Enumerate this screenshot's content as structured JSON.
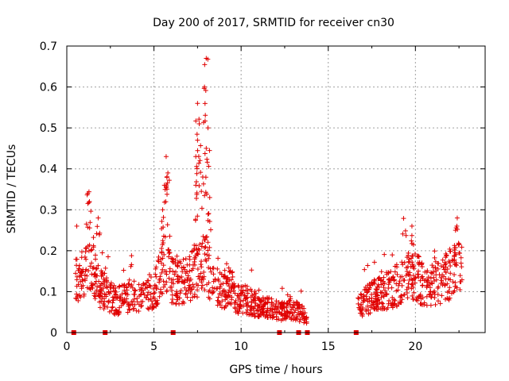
{
  "chart_data": {
    "type": "scatter",
    "title": "Day 200 of 2017, SRMTID for receiver cn30",
    "xlabel": "GPS time / hours",
    "ylabel": "SRMTID / TECUs",
    "xlim": [
      0,
      24
    ],
    "ylim": [
      0,
      0.7
    ],
    "xticks": [
      "0",
      "5",
      "10",
      "15",
      "20"
    ],
    "yticks": [
      "0",
      "0.1",
      "0.2",
      "0.3",
      "0.4",
      "0.5",
      "0.6",
      "0.7"
    ],
    "grid": true,
    "legend": "none",
    "series": [
      {
        "name": "SRMTID",
        "marker": "plus",
        "color": "#e00000",
        "description": "dense scatter; envelope of typical values (hour, value) below, with outlying spikes",
        "envelope": [
          [
            0.5,
            0.15
          ],
          [
            1.0,
            0.12
          ],
          [
            1.3,
            0.2
          ],
          [
            1.7,
            0.12
          ],
          [
            2.2,
            0.1
          ],
          [
            2.7,
            0.08
          ],
          [
            3.2,
            0.08
          ],
          [
            3.7,
            0.09
          ],
          [
            4.2,
            0.08
          ],
          [
            4.7,
            0.09
          ],
          [
            5.2,
            0.12
          ],
          [
            5.6,
            0.17
          ],
          [
            6.0,
            0.13
          ],
          [
            6.5,
            0.12
          ],
          [
            7.0,
            0.13
          ],
          [
            7.5,
            0.15
          ],
          [
            8.0,
            0.17
          ],
          [
            8.4,
            0.12
          ],
          [
            8.9,
            0.1
          ],
          [
            9.3,
            0.12
          ],
          [
            9.8,
            0.08
          ],
          [
            10.3,
            0.08
          ],
          [
            10.8,
            0.07
          ],
          [
            11.3,
            0.06
          ],
          [
            11.8,
            0.06
          ],
          [
            12.3,
            0.05
          ],
          [
            12.8,
            0.06
          ],
          [
            13.3,
            0.05
          ],
          [
            13.8,
            0.04
          ],
          [
            16.7,
            0.06
          ],
          [
            17.2,
            0.08
          ],
          [
            17.7,
            0.09
          ],
          [
            18.2,
            0.1
          ],
          [
            18.7,
            0.11
          ],
          [
            19.2,
            0.12
          ],
          [
            19.7,
            0.14
          ],
          [
            20.2,
            0.13
          ],
          [
            20.7,
            0.11
          ],
          [
            21.2,
            0.12
          ],
          [
            21.7,
            0.13
          ],
          [
            22.2,
            0.15
          ],
          [
            22.7,
            0.15
          ]
        ],
        "spikes": [
          [
            1.2,
            0.34
          ],
          [
            1.3,
            0.32
          ],
          [
            1.8,
            0.28
          ],
          [
            5.7,
            0.43
          ],
          [
            5.6,
            0.36
          ],
          [
            5.5,
            0.3
          ],
          [
            5.8,
            0.39
          ],
          [
            7.4,
            0.43
          ],
          [
            7.5,
            0.47
          ],
          [
            7.5,
            0.56
          ],
          [
            7.6,
            0.51
          ],
          [
            7.4,
            0.36
          ],
          [
            7.9,
            0.6
          ],
          [
            8.0,
            0.67
          ],
          [
            8.1,
            0.5
          ],
          [
            8.0,
            0.45
          ],
          [
            7.8,
            0.38
          ],
          [
            8.2,
            0.33
          ],
          [
            19.8,
            0.26
          ],
          [
            22.4,
            0.28
          ],
          [
            22.3,
            0.25
          ]
        ],
        "zeros": [
          0.4,
          2.2,
          6.1,
          12.2,
          13.3,
          13.8,
          16.6
        ]
      }
    ]
  }
}
